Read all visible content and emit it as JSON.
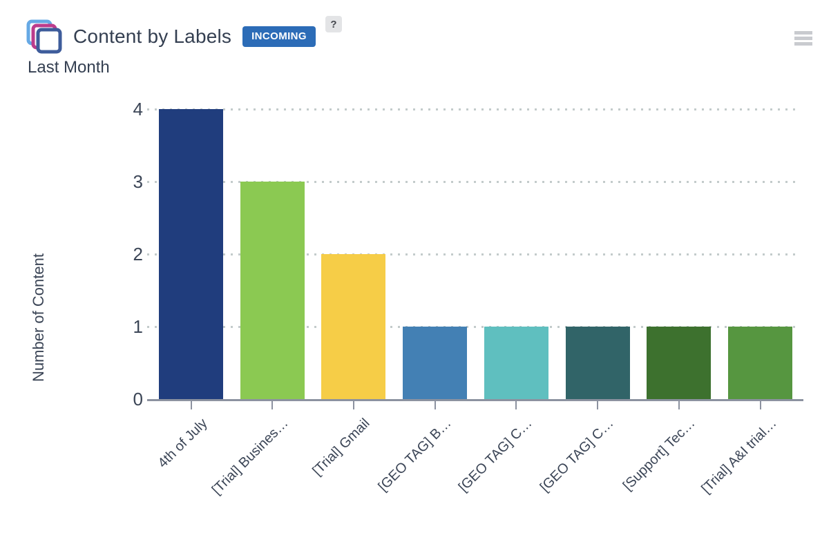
{
  "header": {
    "title": "Content by Labels",
    "badge": "INCOMING",
    "help": "?",
    "subtitle": "Last Month"
  },
  "icons": {
    "gadget": "stacked-content-pages-icon",
    "menu": "hamburger-menu-icon"
  },
  "colors": {
    "badge_bg": "#2C6CB7",
    "badge_text": "#FFFFFF",
    "help_bg": "#E3E4E6",
    "hamburger": "#C9CBCF",
    "axis": "#8C92A0",
    "gridline": "#C3CBCB",
    "text": "#343F51",
    "icon_back": "#66A9E5",
    "icon_middle": "#BC3C8C",
    "icon_front": "#3E5C9B"
  },
  "chart_data": {
    "type": "bar",
    "title": "Content by Labels",
    "subtitle": "Last Month",
    "xlabel": "",
    "ylabel": "Number of Content",
    "ylim": [
      0,
      4
    ],
    "yticks": [
      0,
      1,
      2,
      3,
      4
    ],
    "grid": "horizontal-dotted",
    "legend": "none",
    "categories": [
      "4th of July",
      "[Trial] Busines…",
      "[Trial] Gmail",
      "[GEO TAG] B…",
      "[GEO TAG] C…",
      "[GEO TAG] C…",
      "[Support] Tec…",
      "[Trial] A&I trial…"
    ],
    "values": [
      4,
      3,
      2,
      1,
      1,
      1,
      1,
      1
    ],
    "colors": [
      "#203D7D",
      "#8BC952",
      "#F6CD47",
      "#4380B4",
      "#5FBFBF",
      "#316468",
      "#3D712E",
      "#569640"
    ]
  }
}
